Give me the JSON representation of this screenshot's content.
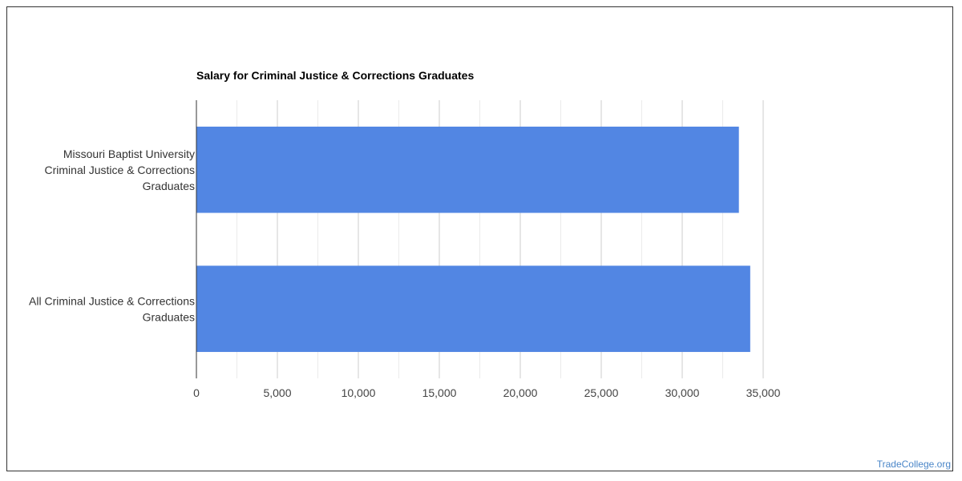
{
  "chart_data": {
    "type": "bar",
    "orientation": "horizontal",
    "title": "Salary for Criminal Justice & Corrections Graduates",
    "categories": [
      [
        "Missouri Baptist University",
        "Criminal Justice & Corrections",
        "Graduates"
      ],
      [
        "All Criminal Justice & Corrections",
        "Graduates"
      ]
    ],
    "values": [
      33500,
      34200
    ],
    "xlim": [
      0,
      35000
    ],
    "xticks": [
      0,
      5000,
      10000,
      15000,
      20000,
      25000,
      30000,
      35000
    ],
    "xtick_labels": [
      "0",
      "5,000",
      "10,000",
      "15,000",
      "20,000",
      "25,000",
      "30,000",
      "35,000"
    ],
    "xlabel": "",
    "ylabel": "",
    "grid": true,
    "bar_color": "#5286e3",
    "grid_color": "#cccccc",
    "minor_grid_color": "#ebebeb"
  },
  "watermark": "TradeCollege.org"
}
